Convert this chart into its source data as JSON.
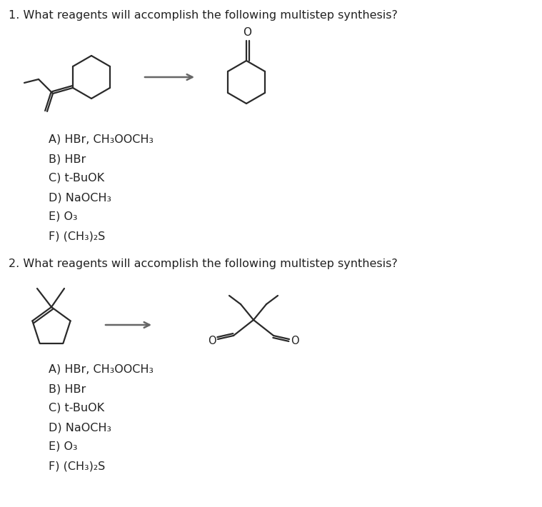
{
  "bg_color": "#ffffff",
  "text_color": "#222222",
  "question1": "1. What reagents will accomplish the following multistep synthesis?",
  "question2": "2. What reagents will accomplish the following multistep synthesis?",
  "options": [
    "A) HBr, CH₃OOCH₃",
    "B) HBr",
    "C) t-BuOK",
    "D) NaOCH₃",
    "E) O₃",
    "F) (CH₃)₂S"
  ],
  "line_color": "#2a2a2a",
  "line_width": 1.6,
  "arrow_color": "#666666",
  "font_size": 11.5,
  "sub_font_size": 9
}
